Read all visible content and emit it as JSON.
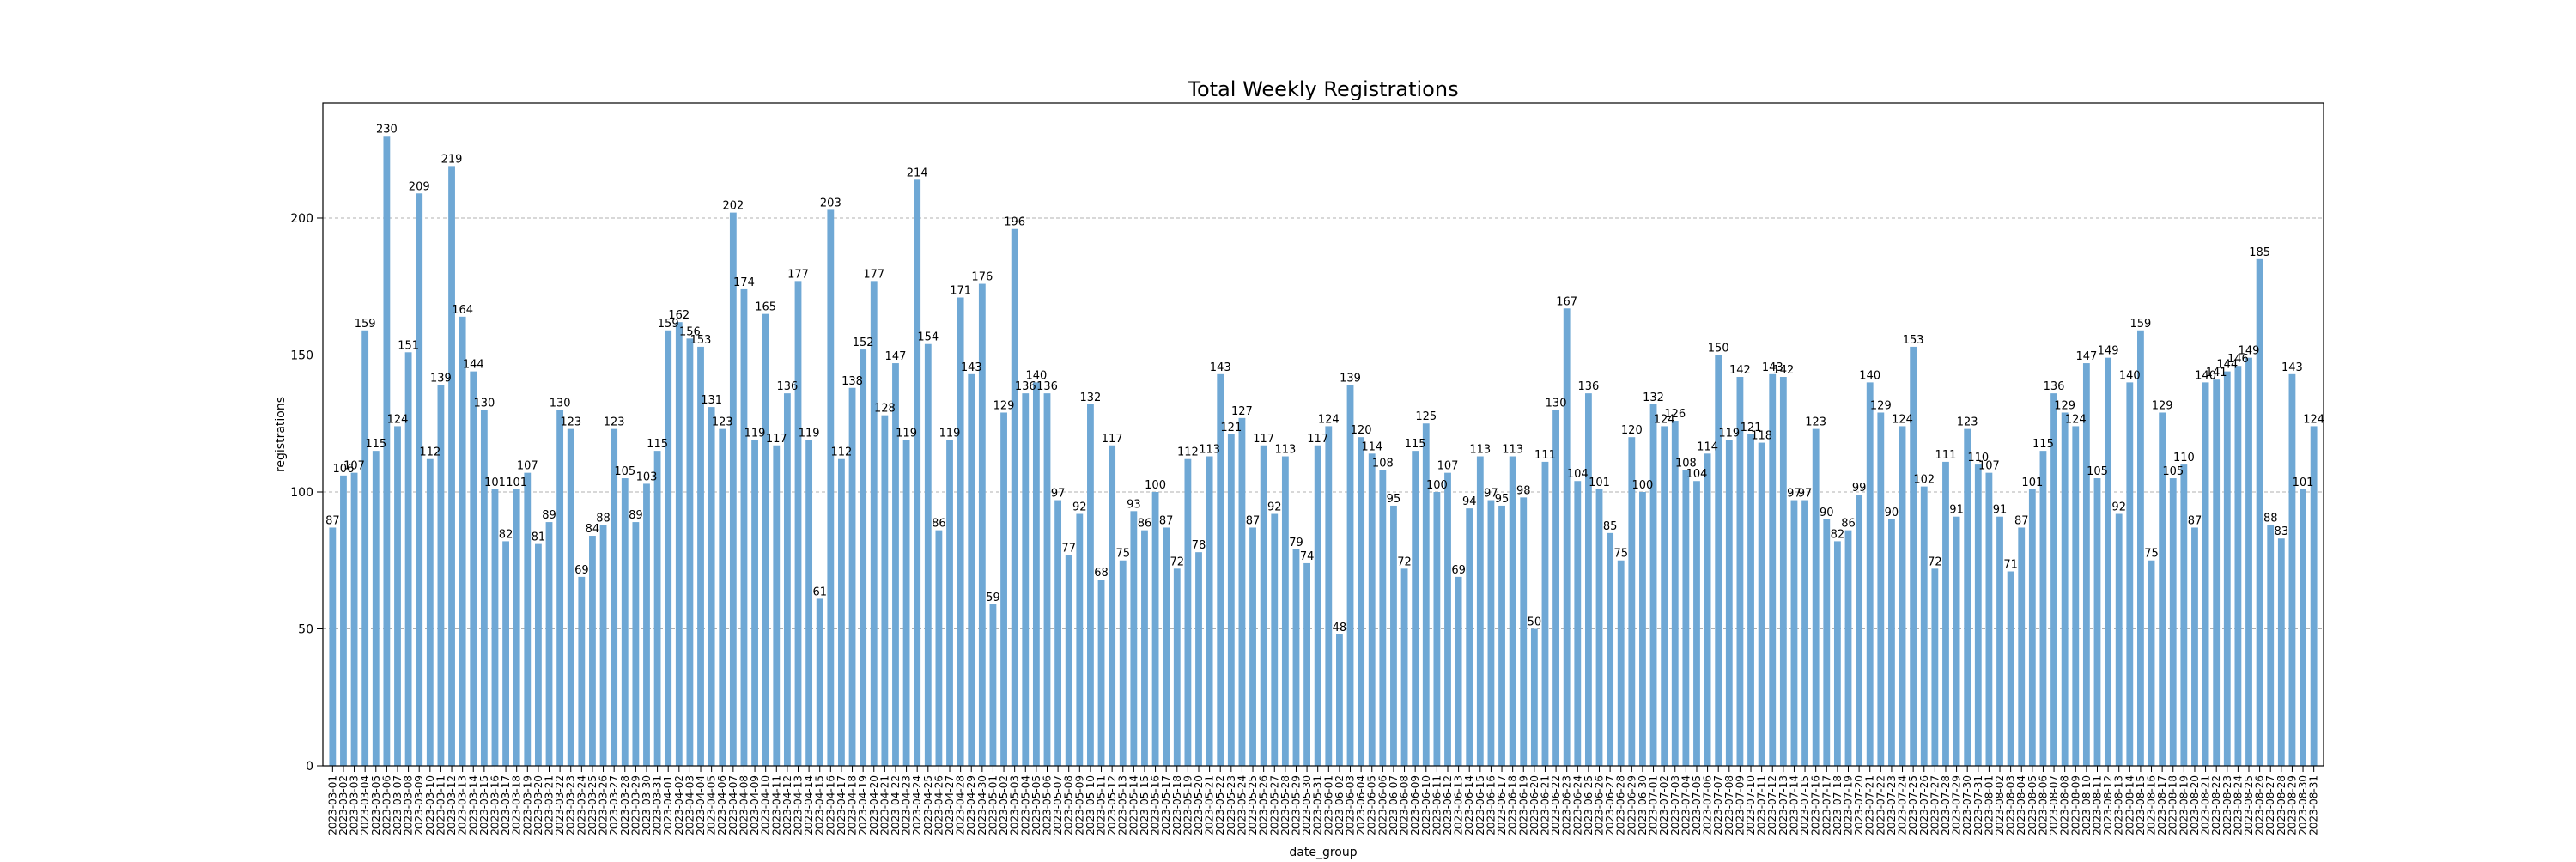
{
  "chart_data": {
    "type": "bar",
    "title": "Total Weekly Registrations",
    "xlabel": "date_group",
    "ylabel": "registrations",
    "ylim": [
      0,
      242
    ],
    "yticks": [
      0,
      50,
      100,
      150,
      200
    ],
    "grid": "horizontal dashed",
    "bar_color": "#6fa8d5",
    "categories": [
      "2023-03-01",
      "2023-03-02",
      "2023-03-03",
      "2023-03-04",
      "2023-03-05",
      "2023-03-06",
      "2023-03-07",
      "2023-03-08",
      "2023-03-09",
      "2023-03-10",
      "2023-03-11",
      "2023-03-12",
      "2023-03-13",
      "2023-03-14",
      "2023-03-15",
      "2023-03-16",
      "2023-03-17",
      "2023-03-18",
      "2023-03-19",
      "2023-03-20",
      "2023-03-21",
      "2023-03-22",
      "2023-03-23",
      "2023-03-24",
      "2023-03-25",
      "2023-03-26",
      "2023-03-27",
      "2023-03-28",
      "2023-03-29",
      "2023-03-30",
      "2023-03-31",
      "2023-04-01",
      "2023-04-02",
      "2023-04-03",
      "2023-04-04",
      "2023-04-05",
      "2023-04-06",
      "2023-04-07",
      "2023-04-08",
      "2023-04-09",
      "2023-04-10",
      "2023-04-11",
      "2023-04-12",
      "2023-04-13",
      "2023-04-14",
      "2023-04-15",
      "2023-04-16",
      "2023-04-17",
      "2023-04-18",
      "2023-04-19",
      "2023-04-20",
      "2023-04-21",
      "2023-04-22",
      "2023-04-23",
      "2023-04-24",
      "2023-04-25",
      "2023-04-26",
      "2023-04-27",
      "2023-04-28",
      "2023-04-29",
      "2023-04-30",
      "2023-05-01",
      "2023-05-02",
      "2023-05-03",
      "2023-05-04",
      "2023-05-05",
      "2023-05-06",
      "2023-05-07",
      "2023-05-08",
      "2023-05-09",
      "2023-05-10",
      "2023-05-11",
      "2023-05-12",
      "2023-05-13",
      "2023-05-14",
      "2023-05-15",
      "2023-05-16",
      "2023-05-17",
      "2023-05-18",
      "2023-05-19",
      "2023-05-20",
      "2023-05-21",
      "2023-05-22",
      "2023-05-23",
      "2023-05-24",
      "2023-05-25",
      "2023-05-26",
      "2023-05-27",
      "2023-05-28",
      "2023-05-29",
      "2023-05-30",
      "2023-05-31",
      "2023-06-01",
      "2023-06-02",
      "2023-06-03",
      "2023-06-04",
      "2023-06-05",
      "2023-06-06",
      "2023-06-07",
      "2023-06-08",
      "2023-06-09",
      "2023-06-10",
      "2023-06-11",
      "2023-06-12",
      "2023-06-13",
      "2023-06-14",
      "2023-06-15",
      "2023-06-16",
      "2023-06-17",
      "2023-06-18",
      "2023-06-19",
      "2023-06-20",
      "2023-06-21",
      "2023-06-22",
      "2023-06-23",
      "2023-06-24",
      "2023-06-25",
      "2023-06-26",
      "2023-06-27",
      "2023-06-28",
      "2023-06-29",
      "2023-06-30",
      "2023-07-01",
      "2023-07-02",
      "2023-07-03",
      "2023-07-04",
      "2023-07-05",
      "2023-07-06",
      "2023-07-07",
      "2023-07-08",
      "2023-07-09",
      "2023-07-10",
      "2023-07-11",
      "2023-07-12",
      "2023-07-13",
      "2023-07-14",
      "2023-07-15",
      "2023-07-16",
      "2023-07-17",
      "2023-07-18",
      "2023-07-19",
      "2023-07-20",
      "2023-07-21",
      "2023-07-22",
      "2023-07-23",
      "2023-07-24",
      "2023-07-25",
      "2023-07-26",
      "2023-07-27",
      "2023-07-28",
      "2023-07-29",
      "2023-07-30",
      "2023-07-31",
      "2023-08-01",
      "2023-08-02",
      "2023-08-03",
      "2023-08-04",
      "2023-08-05",
      "2023-08-06",
      "2023-08-07",
      "2023-08-08",
      "2023-08-09",
      "2023-08-10",
      "2023-08-11",
      "2023-08-12",
      "2023-08-13",
      "2023-08-14",
      "2023-08-15",
      "2023-08-16",
      "2023-08-17",
      "2023-08-18",
      "2023-08-19",
      "2023-08-20",
      "2023-08-21",
      "2023-08-22",
      "2023-08-23",
      "2023-08-24",
      "2023-08-25",
      "2023-08-26",
      "2023-08-27",
      "2023-08-28",
      "2023-08-29",
      "2023-08-30",
      "2023-08-31"
    ],
    "values": [
      87,
      106,
      107,
      159,
      115,
      230,
      124,
      151,
      209,
      112,
      139,
      219,
      164,
      144,
      130,
      101,
      82,
      101,
      107,
      81,
      89,
      130,
      123,
      69,
      84,
      88,
      123,
      105,
      89,
      103,
      115,
      159,
      162,
      156,
      153,
      131,
      123,
      202,
      174,
      119,
      165,
      117,
      136,
      177,
      119,
      61,
      203,
      112,
      138,
      152,
      177,
      128,
      147,
      119,
      214,
      154,
      86,
      119,
      171,
      143,
      176,
      59,
      129,
      196,
      136,
      140,
      136,
      97,
      77,
      92,
      132,
      68,
      117,
      75,
      93,
      86,
      100,
      87,
      72,
      112,
      78,
      113,
      143,
      121,
      127,
      87,
      117,
      92,
      113,
      79,
      74,
      117,
      124,
      48,
      139,
      120,
      114,
      108,
      95,
      72,
      115,
      125,
      100,
      107,
      69,
      94,
      113,
      97,
      95,
      113,
      98,
      50,
      111,
      130,
      167,
      104,
      136,
      101,
      85,
      75,
      120,
      100,
      132,
      124,
      126,
      108,
      104,
      114,
      150,
      119,
      142,
      121,
      118,
      143,
      142,
      97,
      97,
      123,
      90,
      82,
      86,
      99,
      140,
      129,
      90,
      124,
      153,
      102,
      72,
      111,
      91,
      123,
      110,
      107,
      91,
      71,
      87,
      101,
      115,
      136,
      129,
      124,
      147,
      105,
      149,
      92,
      140,
      159,
      75,
      129,
      105,
      110,
      87,
      140,
      141,
      144,
      146,
      149,
      185,
      88,
      83,
      143,
      101,
      124
    ]
  }
}
